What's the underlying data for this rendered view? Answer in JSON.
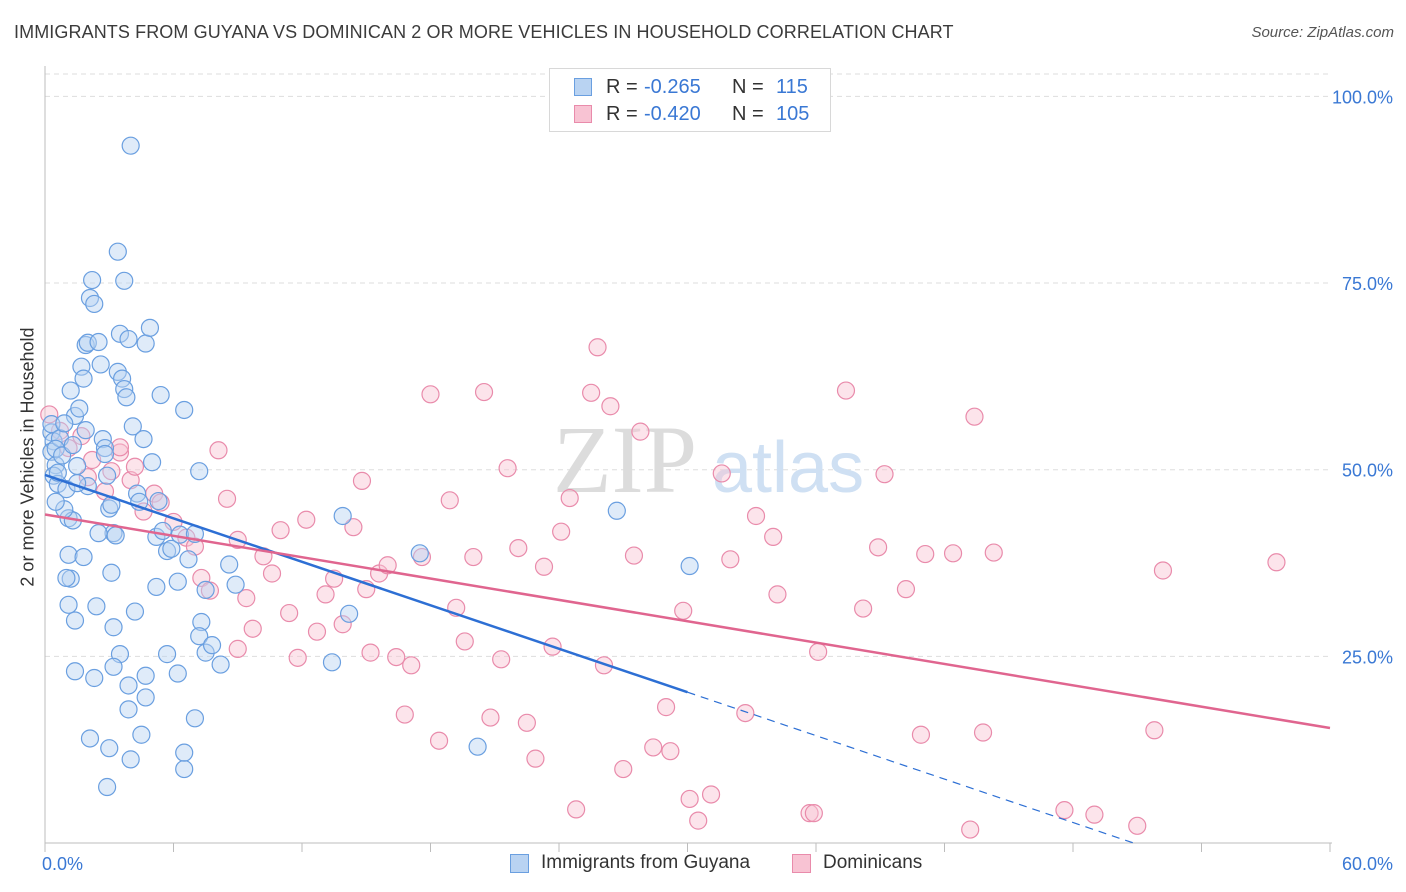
{
  "header": {
    "title": "IMMIGRANTS FROM GUYANA VS DOMINICAN 2 OR MORE VEHICLES IN HOUSEHOLD CORRELATION CHART",
    "source": "Source: ZipAtlas.com"
  },
  "watermark": {
    "zip": "ZIP",
    "atlas": "atlas"
  },
  "legend_top": {
    "rows": [
      {
        "r_label": "R =",
        "r_value": "-0.265",
        "n_label": "N =",
        "n_value": "115"
      },
      {
        "r_label": "R =",
        "r_value": "-0.420",
        "n_label": "N =",
        "n_value": "105"
      }
    ]
  },
  "legend_bottom": {
    "items": [
      "Immigrants from Guyana",
      "Dominicans"
    ]
  },
  "colors": {
    "guyana_fill": "#b9d3f2",
    "guyana_stroke": "#6a9fe0",
    "guyana_line": "#2d6fd4",
    "dominican_fill": "#f8c3d3",
    "dominican_stroke": "#e98bab",
    "dominican_line": "#e0658f",
    "tick_label": "#3a78d4",
    "grid": "#dddddd"
  },
  "chart_data": {
    "type": "scatter",
    "title": "IMMIGRANTS FROM GUYANA VS DOMINICAN 2 OR MORE VEHICLES IN HOUSEHOLD CORRELATION CHART",
    "xlabel": "",
    "ylabel": "2 or more Vehicles in Household",
    "xlim": [
      0,
      60
    ],
    "ylim": [
      0,
      103
    ],
    "x_tick_labels": [
      "0.0%",
      "60.0%"
    ],
    "y_ticks": [
      25,
      50,
      75,
      100
    ],
    "y_tick_labels": [
      "25.0%",
      "50.0%",
      "75.0%",
      "100.0%"
    ],
    "grid": true,
    "legend_position": "top-center",
    "series": [
      {
        "name": "Immigrants from Guyana",
        "r": -0.265,
        "n": 115,
        "trend": {
          "x0": 0,
          "y0": 49.3,
          "x1": 30,
          "y1": 20.2,
          "dashed_to_x": 60
        },
        "points": [
          [
            0.3,
            55.0
          ],
          [
            0.4,
            53.8
          ],
          [
            0.3,
            52.4
          ],
          [
            0.5,
            50.6
          ],
          [
            0.4,
            49.2
          ],
          [
            0.6,
            48.1
          ],
          [
            0.3,
            56.1
          ],
          [
            0.7,
            54.2
          ],
          [
            0.5,
            52.8
          ],
          [
            0.8,
            51.9
          ],
          [
            0.6,
            49.6
          ],
          [
            1.0,
            47.4
          ],
          [
            1.1,
            43.5
          ],
          [
            1.2,
            60.6
          ],
          [
            1.4,
            57.2
          ],
          [
            1.3,
            53.3
          ],
          [
            1.5,
            50.5
          ],
          [
            1.6,
            58.2
          ],
          [
            1.7,
            63.8
          ],
          [
            1.8,
            62.2
          ],
          [
            1.9,
            66.7
          ],
          [
            2.0,
            67.0
          ],
          [
            2.2,
            75.4
          ],
          [
            2.1,
            73.0
          ],
          [
            2.3,
            72.2
          ],
          [
            2.5,
            67.1
          ],
          [
            2.6,
            64.1
          ],
          [
            2.7,
            54.1
          ],
          [
            2.8,
            52.9
          ],
          [
            2.9,
            49.2
          ],
          [
            3.0,
            44.8
          ],
          [
            3.1,
            45.3
          ],
          [
            3.2,
            41.5
          ],
          [
            3.3,
            41.2
          ],
          [
            3.4,
            63.1
          ],
          [
            3.6,
            62.2
          ],
          [
            3.7,
            60.8
          ],
          [
            3.8,
            59.7
          ],
          [
            3.5,
            68.2
          ],
          [
            3.4,
            79.2
          ],
          [
            3.7,
            75.3
          ],
          [
            3.9,
            67.5
          ],
          [
            4.1,
            55.8
          ],
          [
            4.3,
            46.8
          ],
          [
            4.4,
            45.7
          ],
          [
            4.6,
            54.1
          ],
          [
            4.7,
            66.9
          ],
          [
            4.9,
            69.0
          ],
          [
            5.0,
            51.0
          ],
          [
            5.2,
            41.0
          ],
          [
            5.3,
            45.8
          ],
          [
            5.4,
            60.0
          ],
          [
            5.5,
            41.8
          ],
          [
            5.7,
            39.1
          ],
          [
            5.9,
            39.4
          ],
          [
            6.2,
            35.0
          ],
          [
            6.3,
            41.3
          ],
          [
            6.5,
            58.0
          ],
          [
            6.7,
            38.0
          ],
          [
            7.0,
            41.4
          ],
          [
            7.2,
            49.8
          ],
          [
            7.5,
            33.9
          ],
          [
            7.3,
            29.6
          ],
          [
            7.2,
            27.7
          ],
          [
            7.5,
            25.5
          ],
          [
            7.8,
            26.5
          ],
          [
            7.0,
            16.7
          ],
          [
            6.5,
            9.9
          ],
          [
            6.5,
            12.1
          ],
          [
            5.7,
            25.3
          ],
          [
            4.7,
            22.4
          ],
          [
            4.7,
            19.5
          ],
          [
            4.5,
            14.5
          ],
          [
            4.0,
            11.2
          ],
          [
            3.9,
            17.9
          ],
          [
            3.9,
            21.1
          ],
          [
            3.5,
            25.3
          ],
          [
            3.2,
            23.6
          ],
          [
            3.0,
            12.7
          ],
          [
            2.9,
            7.5
          ],
          [
            2.3,
            22.1
          ],
          [
            2.1,
            14.0
          ],
          [
            1.4,
            23.0
          ],
          [
            1.4,
            29.8
          ],
          [
            1.2,
            35.4
          ],
          [
            1.1,
            31.9
          ],
          [
            1.0,
            35.5
          ],
          [
            1.1,
            38.6
          ],
          [
            1.8,
            38.3
          ],
          [
            2.4,
            31.7
          ],
          [
            3.2,
            28.9
          ],
          [
            4.2,
            31.0
          ],
          [
            2.0,
            47.8
          ],
          [
            1.3,
            43.2
          ],
          [
            0.9,
            44.7
          ],
          [
            8.2,
            23.9
          ],
          [
            8.6,
            37.3
          ],
          [
            8.9,
            34.6
          ],
          [
            13.9,
            43.8
          ],
          [
            13.4,
            24.2
          ],
          [
            14.2,
            30.7
          ],
          [
            17.5,
            38.8
          ],
          [
            20.2,
            12.9
          ],
          [
            26.7,
            44.5
          ],
          [
            30.1,
            37.1
          ],
          [
            4.0,
            93.4
          ],
          [
            2.8,
            52.1
          ],
          [
            1.9,
            55.3
          ],
          [
            0.9,
            56.2
          ],
          [
            1.5,
            48.2
          ],
          [
            0.5,
            45.7
          ],
          [
            2.5,
            41.5
          ],
          [
            3.1,
            36.2
          ],
          [
            5.2,
            34.3
          ],
          [
            6.2,
            22.7
          ]
        ]
      },
      {
        "name": "Dominicans",
        "r": -0.42,
        "n": 105,
        "trend": {
          "x0": 0,
          "y0": 44.0,
          "x1": 60,
          "y1": 15.4
        },
        "points": [
          [
            0.2,
            57.4
          ],
          [
            0.7,
            55.2
          ],
          [
            1.1,
            52.9
          ],
          [
            1.7,
            54.5
          ],
          [
            2.2,
            51.3
          ],
          [
            2.8,
            47.1
          ],
          [
            3.1,
            49.8
          ],
          [
            3.5,
            52.3
          ],
          [
            4.0,
            48.6
          ],
          [
            4.2,
            50.4
          ],
          [
            4.6,
            44.4
          ],
          [
            5.1,
            46.8
          ],
          [
            5.4,
            45.6
          ],
          [
            6.0,
            43.0
          ],
          [
            6.6,
            40.9
          ],
          [
            7.0,
            39.7
          ],
          [
            7.3,
            35.5
          ],
          [
            7.7,
            33.8
          ],
          [
            8.1,
            52.6
          ],
          [
            8.5,
            46.1
          ],
          [
            9.0,
            40.6
          ],
          [
            9.4,
            32.8
          ],
          [
            9.7,
            28.7
          ],
          [
            10.2,
            38.4
          ],
          [
            10.6,
            36.1
          ],
          [
            11.0,
            41.9
          ],
          [
            11.4,
            30.8
          ],
          [
            11.8,
            24.8
          ],
          [
            12.2,
            43.3
          ],
          [
            12.7,
            28.3
          ],
          [
            13.1,
            33.3
          ],
          [
            13.5,
            35.4
          ],
          [
            13.9,
            29.3
          ],
          [
            14.4,
            42.3
          ],
          [
            14.8,
            48.5
          ],
          [
            15.2,
            25.5
          ],
          [
            15.6,
            36.1
          ],
          [
            16.0,
            37.2
          ],
          [
            16.4,
            24.9
          ],
          [
            16.8,
            17.2
          ],
          [
            17.1,
            23.8
          ],
          [
            17.6,
            38.3
          ],
          [
            18.0,
            60.1
          ],
          [
            18.4,
            13.7
          ],
          [
            18.9,
            45.9
          ],
          [
            19.2,
            31.5
          ],
          [
            19.6,
            27.0
          ],
          [
            20.0,
            38.3
          ],
          [
            20.5,
            60.4
          ],
          [
            20.8,
            16.8
          ],
          [
            21.3,
            24.6
          ],
          [
            21.6,
            50.2
          ],
          [
            22.1,
            39.5
          ],
          [
            22.5,
            16.1
          ],
          [
            22.9,
            11.3
          ],
          [
            23.3,
            37.0
          ],
          [
            23.7,
            26.3
          ],
          [
            24.1,
            41.7
          ],
          [
            24.5,
            46.2
          ],
          [
            24.8,
            4.5
          ],
          [
            25.5,
            60.3
          ],
          [
            25.8,
            66.4
          ],
          [
            26.1,
            23.8
          ],
          [
            26.4,
            58.5
          ],
          [
            27.0,
            9.9
          ],
          [
            27.5,
            38.5
          ],
          [
            27.8,
            55.1
          ],
          [
            28.4,
            12.8
          ],
          [
            29.0,
            18.2
          ],
          [
            29.2,
            12.3
          ],
          [
            29.8,
            31.1
          ],
          [
            30.1,
            5.9
          ],
          [
            30.5,
            3.0
          ],
          [
            31.1,
            6.5
          ],
          [
            31.6,
            49.5
          ],
          [
            32.0,
            38.0
          ],
          [
            32.7,
            17.4
          ],
          [
            33.2,
            43.8
          ],
          [
            34.0,
            41.0
          ],
          [
            34.2,
            33.3
          ],
          [
            35.7,
            4.0
          ],
          [
            35.9,
            4.0
          ],
          [
            36.1,
            25.6
          ],
          [
            37.4,
            60.6
          ],
          [
            38.2,
            31.4
          ],
          [
            38.9,
            39.6
          ],
          [
            39.2,
            49.4
          ],
          [
            40.2,
            34.0
          ],
          [
            40.9,
            14.5
          ],
          [
            41.1,
            38.7
          ],
          [
            42.4,
            38.8
          ],
          [
            43.2,
            1.8
          ],
          [
            43.4,
            57.1
          ],
          [
            43.8,
            14.8
          ],
          [
            44.3,
            38.9
          ],
          [
            47.6,
            4.4
          ],
          [
            49.0,
            3.8
          ],
          [
            51.0,
            2.3
          ],
          [
            51.8,
            15.1
          ],
          [
            52.2,
            36.5
          ],
          [
            57.5,
            37.6
          ],
          [
            2.0,
            49.0
          ],
          [
            3.5,
            53.0
          ],
          [
            9.0,
            26.0
          ],
          [
            15.0,
            34.0
          ]
        ]
      }
    ]
  }
}
